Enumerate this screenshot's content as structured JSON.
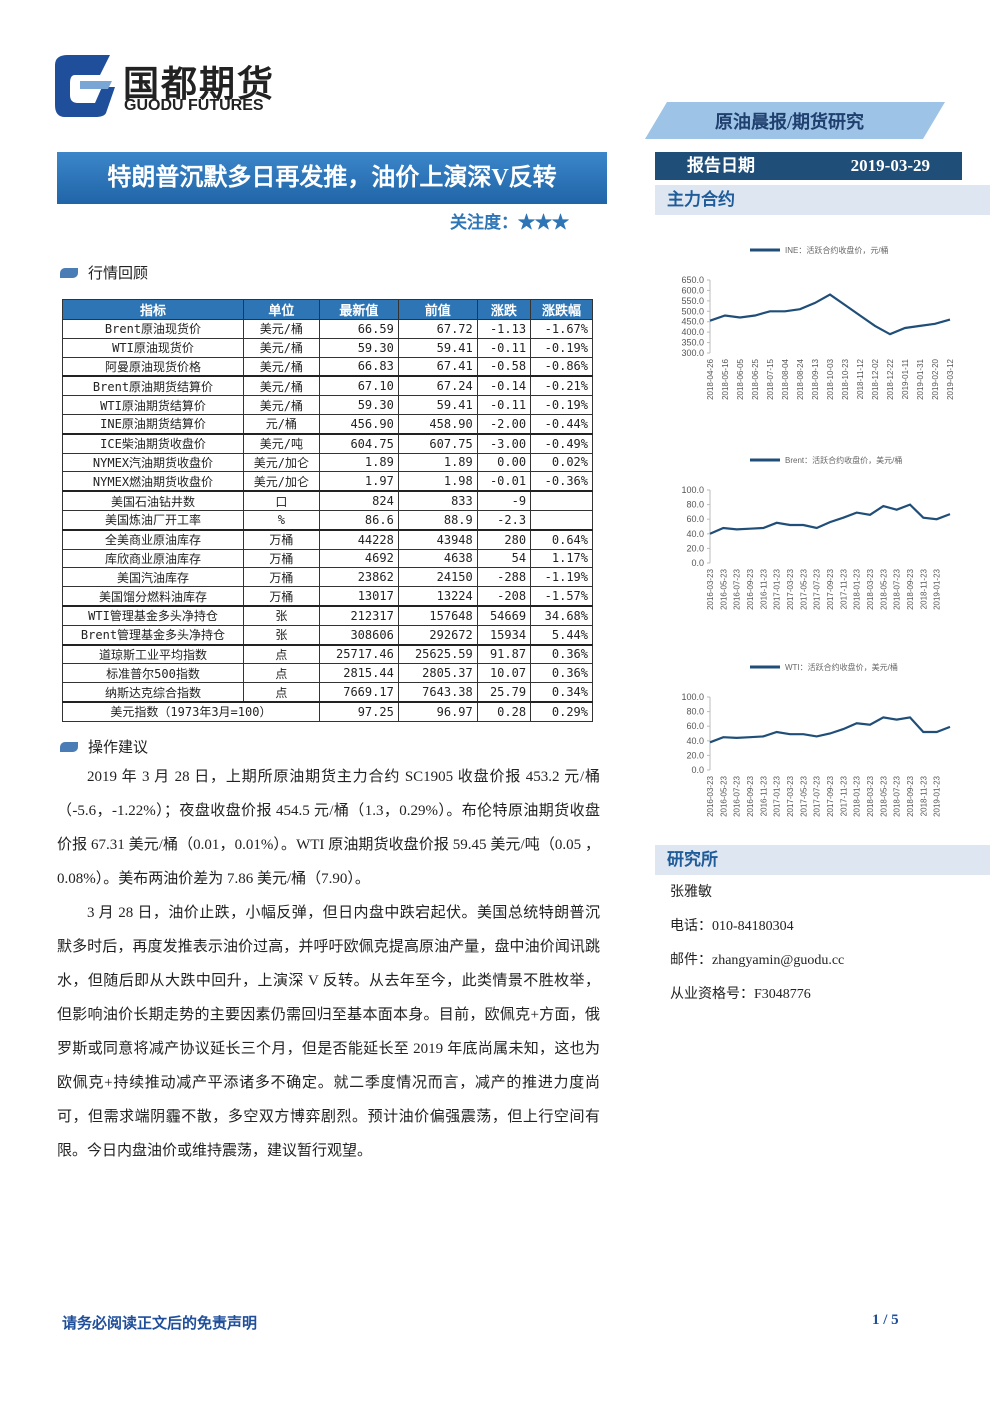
{
  "header": {
    "logo_cn": "国都期货",
    "logo_en": "GUODU FUTURES",
    "banner": "原油晨报/期货研究",
    "title": "特朗普沉默多日再发推，油价上演深V反转",
    "attention_label": "关注度：",
    "attention_stars": "★★★",
    "date_label": "报告日期",
    "date": "2019-03-29"
  },
  "sections": {
    "contracts": "主力合约",
    "review": "行情回顾",
    "advice": "操作建议",
    "institute": "研究所"
  },
  "table": {
    "header": [
      "指标",
      "单位",
      "最新值",
      "前值",
      "涨跌",
      "涨跌幅"
    ],
    "rows": [
      [
        "Brent原油现货价",
        "美元/桶",
        "66.59",
        "67.72",
        "-1.13",
        "-1.67%"
      ],
      [
        "WTI原油现货价",
        "美元/桶",
        "59.30",
        "59.41",
        "-0.11",
        "-0.19%"
      ],
      [
        "阿曼原油现货价格",
        "美元/桶",
        "66.83",
        "67.41",
        "-0.58",
        "-0.86%"
      ],
      [
        "Brent原油期货结算价",
        "美元/桶",
        "67.10",
        "67.24",
        "-0.14",
        "-0.21%"
      ],
      [
        "WTI原油期货结算价",
        "美元/桶",
        "59.30",
        "59.41",
        "-0.11",
        "-0.19%"
      ],
      [
        "INE原油期货结算价",
        "元/桶",
        "456.90",
        "458.90",
        "-2.00",
        "-0.44%"
      ],
      [
        "ICE柴油期货收盘价",
        "美元/吨",
        "604.75",
        "607.75",
        "-3.00",
        "-0.49%"
      ],
      [
        "NYMEX汽油期货收盘价",
        "美元/加仑",
        "1.89",
        "1.89",
        "0.00",
        "0.02%"
      ],
      [
        "NYMEX燃油期货收盘价",
        "美元/加仑",
        "1.97",
        "1.98",
        "-0.01",
        "-0.36%"
      ],
      [
        "美国石油钻井数",
        "口",
        "824",
        "833",
        "-9",
        null
      ],
      [
        "美国炼油厂开工率",
        "%",
        "86.6",
        "88.9",
        "-2.3",
        null
      ],
      [
        "全美商业原油库存",
        "万桶",
        "44228",
        "43948",
        "280",
        "0.64%"
      ],
      [
        "库欣商业原油库存",
        "万桶",
        "4692",
        "4638",
        "54",
        "1.17%"
      ],
      [
        "美国汽油库存",
        "万桶",
        "23862",
        "24150",
        "-288",
        "-1.19%"
      ],
      [
        "美国馏分燃料油库存",
        "万桶",
        "13017",
        "13224",
        "-208",
        "-1.57%"
      ],
      [
        "WTI管理基金多头净持仓",
        "张",
        "212317",
        "157648",
        "54669",
        "34.68%"
      ],
      [
        "Brent管理基金多头净持仓",
        "张",
        "308606",
        "292672",
        "15934",
        "5.44%"
      ],
      [
        "道琼斯工业平均指数",
        "点",
        "25717.46",
        "25625.59",
        "91.87",
        "0.36%"
      ],
      [
        "标准普尔500指数",
        "点",
        "2815.44",
        "2805.37",
        "10.07",
        "0.36%"
      ],
      [
        "纳斯达克综合指数",
        "点",
        "7669.17",
        "7643.38",
        "25.79",
        "0.34%"
      ],
      [
        "美元指数（1973年3月=100）",
        null,
        "97.25",
        "96.97",
        "0.28",
        "0.29%"
      ]
    ]
  },
  "paragraphs": [
    "2019 年 3 月 28 日，上期所原油期货主力合约 SC1905 收盘价报 453.2 元/桶（-5.6，-1.22%）；夜盘收盘价报 454.5 元/桶（1.3，0.29%）。布伦特原油期货收盘价报 67.31 美元/桶（0.01，0.01%）。WTI 原油期货收盘价报 59.45 美元/吨（0.05 ，0.08%）。美布两油价差为 7.86 美元/桶（7.90）。",
    "3 月 28 日，油价止跌，小幅反弹，但日内盘中跌宕起伏。美国总统特朗普沉默多时后，再度发推表示油价过高，并呼吁欧佩克提高原油产量，盘中油价闻讯跳水，但随后即从大跌中回升，上演深 V 反转。从去年至今，此类情景不胜枚举，但影响油价长期走势的主要因素仍需回归至基本面本身。目前，欧佩克+方面，俄罗斯或同意将减产协议延长三个月，但是否能延长至 2019 年底尚属未知，这也为欧佩克+持续推动减产平添诸多不确定。就二季度情况而言，减产的推进力度尚可，但需求端阴霾不散，多空双方博弈剧烈。预计油价偏强震荡，但上行空间有限。今日内盘油价或维持震荡，建议暂行观望。"
  ],
  "contact": {
    "name": "张雅敏",
    "phone": "电话：010-84180304",
    "email": "邮件：zhangyamin@guodu.cc",
    "license": "从业资格号：F3048776"
  },
  "footer": {
    "disclaimer": "请务必阅读正文后的免责声明",
    "page": "1 / 5"
  },
  "chart_data": [
    {
      "type": "line",
      "categories": [
        "2018-04-26",
        "2018-05-16",
        "2018-06-05",
        "2018-06-25",
        "2018-07-15",
        "2018-08-04",
        "2018-08-24",
        "2018-09-13",
        "2018-10-03",
        "2018-10-23",
        "2018-11-12",
        "2018-12-02",
        "2018-12-22",
        "2019-01-11",
        "2019-01-31",
        "2019-02-20",
        "2019-03-12"
      ],
      "series": [
        {
          "name": "INE：活跃合约收盘价，元/桶",
          "color": "#1f4e79",
          "values": [
            455,
            480,
            470,
            480,
            500,
            500,
            510,
            540,
            580,
            530,
            480,
            430,
            390,
            420,
            430,
            440,
            460
          ]
        }
      ],
      "ylim": [
        300,
        650
      ],
      "yticks": [
        {
          "value": 300,
          "label": "300.0"
        },
        {
          "value": 350,
          "label": "350.0"
        },
        {
          "value": 400,
          "label": "400.0"
        },
        {
          "value": 450,
          "label": "450.0"
        },
        {
          "value": 500,
          "label": "500.0"
        },
        {
          "value": 550,
          "label": "550.0"
        },
        {
          "value": 600,
          "label": "600.0"
        },
        {
          "value": 650,
          "label": "650.0"
        }
      ]
    },
    {
      "type": "line",
      "categories": [
        "2016-03-23",
        "2016-05-23",
        "2016-07-23",
        "2016-09-23",
        "2016-11-23",
        "2017-01-23",
        "2017-03-23",
        "2017-05-23",
        "2017-07-23",
        "2017-09-23",
        "2017-11-23",
        "2018-01-23",
        "2018-03-23",
        "2018-05-23",
        "2018-07-23",
        "2018-09-23",
        "2018-11-23",
        "2019-01-23",
        null
      ],
      "series": [
        {
          "name": "Brent：活跃合约收盘价，美元/桶",
          "color": "#1f4e79",
          "values": [
            40,
            48,
            46,
            47,
            48,
            55,
            52,
            52,
            48,
            56,
            62,
            69,
            66,
            78,
            73,
            80,
            62,
            60,
            67
          ]
        }
      ],
      "ylim": [
        0,
        100
      ],
      "yticks": [
        {
          "value": 0,
          "label": "0.0"
        },
        {
          "value": 20,
          "label": "20.0"
        },
        {
          "value": 40,
          "label": "40.0"
        },
        {
          "value": 60,
          "label": "60.0"
        },
        {
          "value": 80,
          "label": "80.0"
        },
        {
          "value": 100,
          "label": "100.0"
        }
      ]
    },
    {
      "type": "line",
      "categories": [
        "2016-03-23",
        "2016-05-23",
        "2016-07-23",
        "2016-09-23",
        "2016-11-23",
        "2017-01-23",
        "2017-03-23",
        "2017-05-23",
        "2017-07-23",
        "2017-09-23",
        "2017-11-23",
        "2018-01-23",
        "2018-03-23",
        "2018-05-23",
        "2018-07-23",
        "2018-09-23",
        "2018-11-23",
        "2019-01-23",
        null
      ],
      "series": [
        {
          "name": "WTI：活跃合约收盘价，美元/桶",
          "color": "#1f4e79",
          "values": [
            38,
            45,
            44,
            45,
            46,
            52,
            49,
            49,
            46,
            50,
            56,
            64,
            62,
            72,
            69,
            72,
            52,
            52,
            59
          ]
        }
      ],
      "ylim": [
        0,
        100
      ],
      "yticks": [
        {
          "value": 0,
          "label": "0.0"
        },
        {
          "value": 20,
          "label": "20.0"
        },
        {
          "value": 40,
          "label": "40.0"
        },
        {
          "value": 60,
          "label": "60.0"
        },
        {
          "value": 80,
          "label": "80.0"
        },
        {
          "value": 100,
          "label": "100.0"
        }
      ]
    }
  ]
}
